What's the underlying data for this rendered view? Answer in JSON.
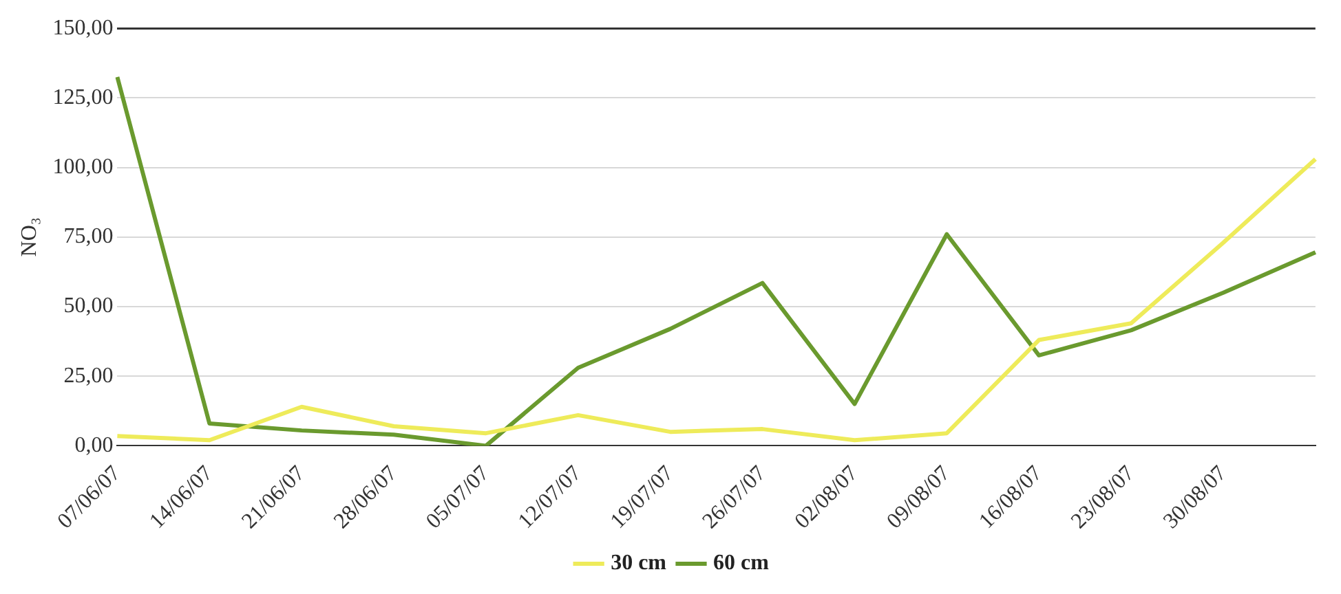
{
  "chart_data": {
    "type": "line",
    "ylabel": "NO₃",
    "categories": [
      "07/06/07",
      "14/06/07",
      "21/06/07",
      "28/06/07",
      "05/07/07",
      "12/07/07",
      "19/07/07",
      "26/07/07",
      "02/08/07",
      "09/08/07",
      "16/08/07",
      "23/08/07",
      "30/08/07",
      null
    ],
    "series": [
      {
        "name": "30 cm",
        "color": "#eeeb5a",
        "values": [
          3.5,
          2,
          14,
          7,
          4.5,
          11,
          5,
          6,
          2,
          4.5,
          38,
          44,
          73,
          103
        ]
      },
      {
        "name": "60 cm",
        "color": "#6a9a2e",
        "values": [
          132.5,
          8,
          5.5,
          4,
          0,
          28,
          42,
          58.5,
          15,
          76,
          32.5,
          41.5,
          55,
          69.5
        ]
      }
    ],
    "ylim": [
      0,
      150
    ],
    "yticks": [
      {
        "value": 0,
        "label": "0,00"
      },
      {
        "value": 25,
        "label": "25,00"
      },
      {
        "value": 50,
        "label": "50,00"
      },
      {
        "value": 75,
        "label": "75,00"
      },
      {
        "value": 100,
        "label": "100,00"
      },
      {
        "value": 125,
        "label": "125,00"
      },
      {
        "value": 150,
        "label": "150,00"
      }
    ],
    "grid": "y",
    "legend": "bottom",
    "marker": "none",
    "line_style": "solid"
  }
}
